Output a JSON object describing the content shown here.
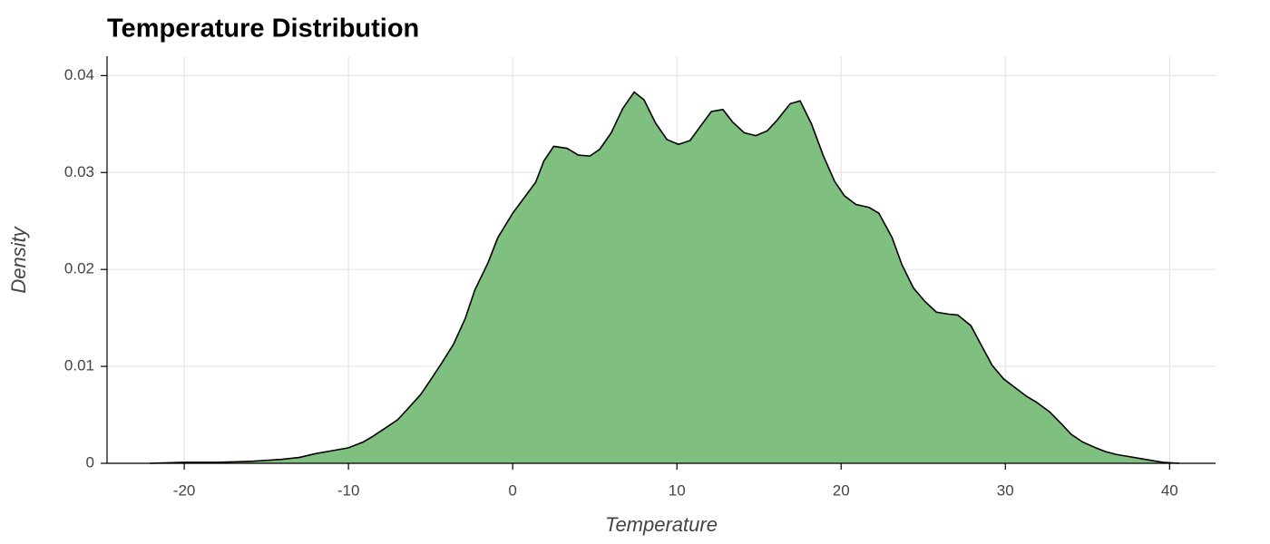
{
  "chart_data": {
    "type": "area",
    "title": "Temperature Distribution",
    "x_label": "Temperature",
    "y_label": "Density",
    "color": "#7fbf7f",
    "line_color": "#000000",
    "grid": true,
    "x": [
      -22.1,
      -20,
      -18,
      -16,
      -14.1,
      -13,
      -12,
      -11,
      -10,
      -9.1,
      -8.5,
      -7.7,
      -7.0,
      -6.4,
      -5.6,
      -5.0,
      -4.3,
      -3.6,
      -2.9,
      -2.3,
      -1.5,
      -0.9,
      0,
      1.4,
      1.9,
      2.5,
      3.3,
      4.0,
      4.7,
      5.3,
      6.0,
      6.7,
      7.4,
      8.0,
      8.7,
      9.4,
      10.1,
      10.8,
      11.4,
      12.1,
      12.8,
      13.4,
      14.1,
      14.8,
      15.5,
      16.1,
      16.9,
      17.5,
      18.2,
      18.9,
      19.6,
      20.2,
      20.9,
      21.7,
      22.3,
      23.1,
      23.7,
      24.4,
      25.1,
      25.8,
      26.5,
      27.1,
      27.9,
      28.5,
      29.2,
      29.9,
      30.6,
      31.3,
      31.9,
      32.7,
      33.4,
      34.0,
      34.7,
      35.5,
      36.1,
      36.8,
      37.5,
      38.2,
      38.9,
      39.6,
      40.6
    ],
    "values": [
      0,
      0.0001,
      0.0001,
      0.0002,
      0.0004,
      0.0006,
      0.001,
      0.0013,
      0.0016,
      0.0022,
      0.0028,
      0.0037,
      0.0045,
      0.0056,
      0.0071,
      0.0086,
      0.0104,
      0.0123,
      0.0149,
      0.0179,
      0.0207,
      0.0233,
      0.0258,
      0.029,
      0.0312,
      0.0327,
      0.0325,
      0.0318,
      0.0317,
      0.0324,
      0.0341,
      0.0366,
      0.0383,
      0.0375,
      0.0351,
      0.0334,
      0.0329,
      0.0333,
      0.0347,
      0.0363,
      0.0365,
      0.0352,
      0.0341,
      0.0338,
      0.0343,
      0.0354,
      0.0371,
      0.0374,
      0.035,
      0.0318,
      0.0291,
      0.0276,
      0.0267,
      0.0264,
      0.0258,
      0.0233,
      0.0205,
      0.0181,
      0.0167,
      0.0156,
      0.0154,
      0.0153,
      0.0142,
      0.0123,
      0.0101,
      0.0087,
      0.0078,
      0.0069,
      0.0063,
      0.0053,
      0.0041,
      0.003,
      0.0022,
      0.0016,
      0.0012,
      0.0009,
      0.0007,
      0.0005,
      0.0003,
      0.0001,
      0
    ],
    "xlim": [
      -24.7,
      42.8
    ],
    "xticks": [
      -20,
      -10,
      0,
      10,
      20,
      30,
      40
    ],
    "ylim": [
      0,
      0.042
    ],
    "yticks": [
      0,
      0.01,
      0.02,
      0.03,
      0.04
    ]
  }
}
